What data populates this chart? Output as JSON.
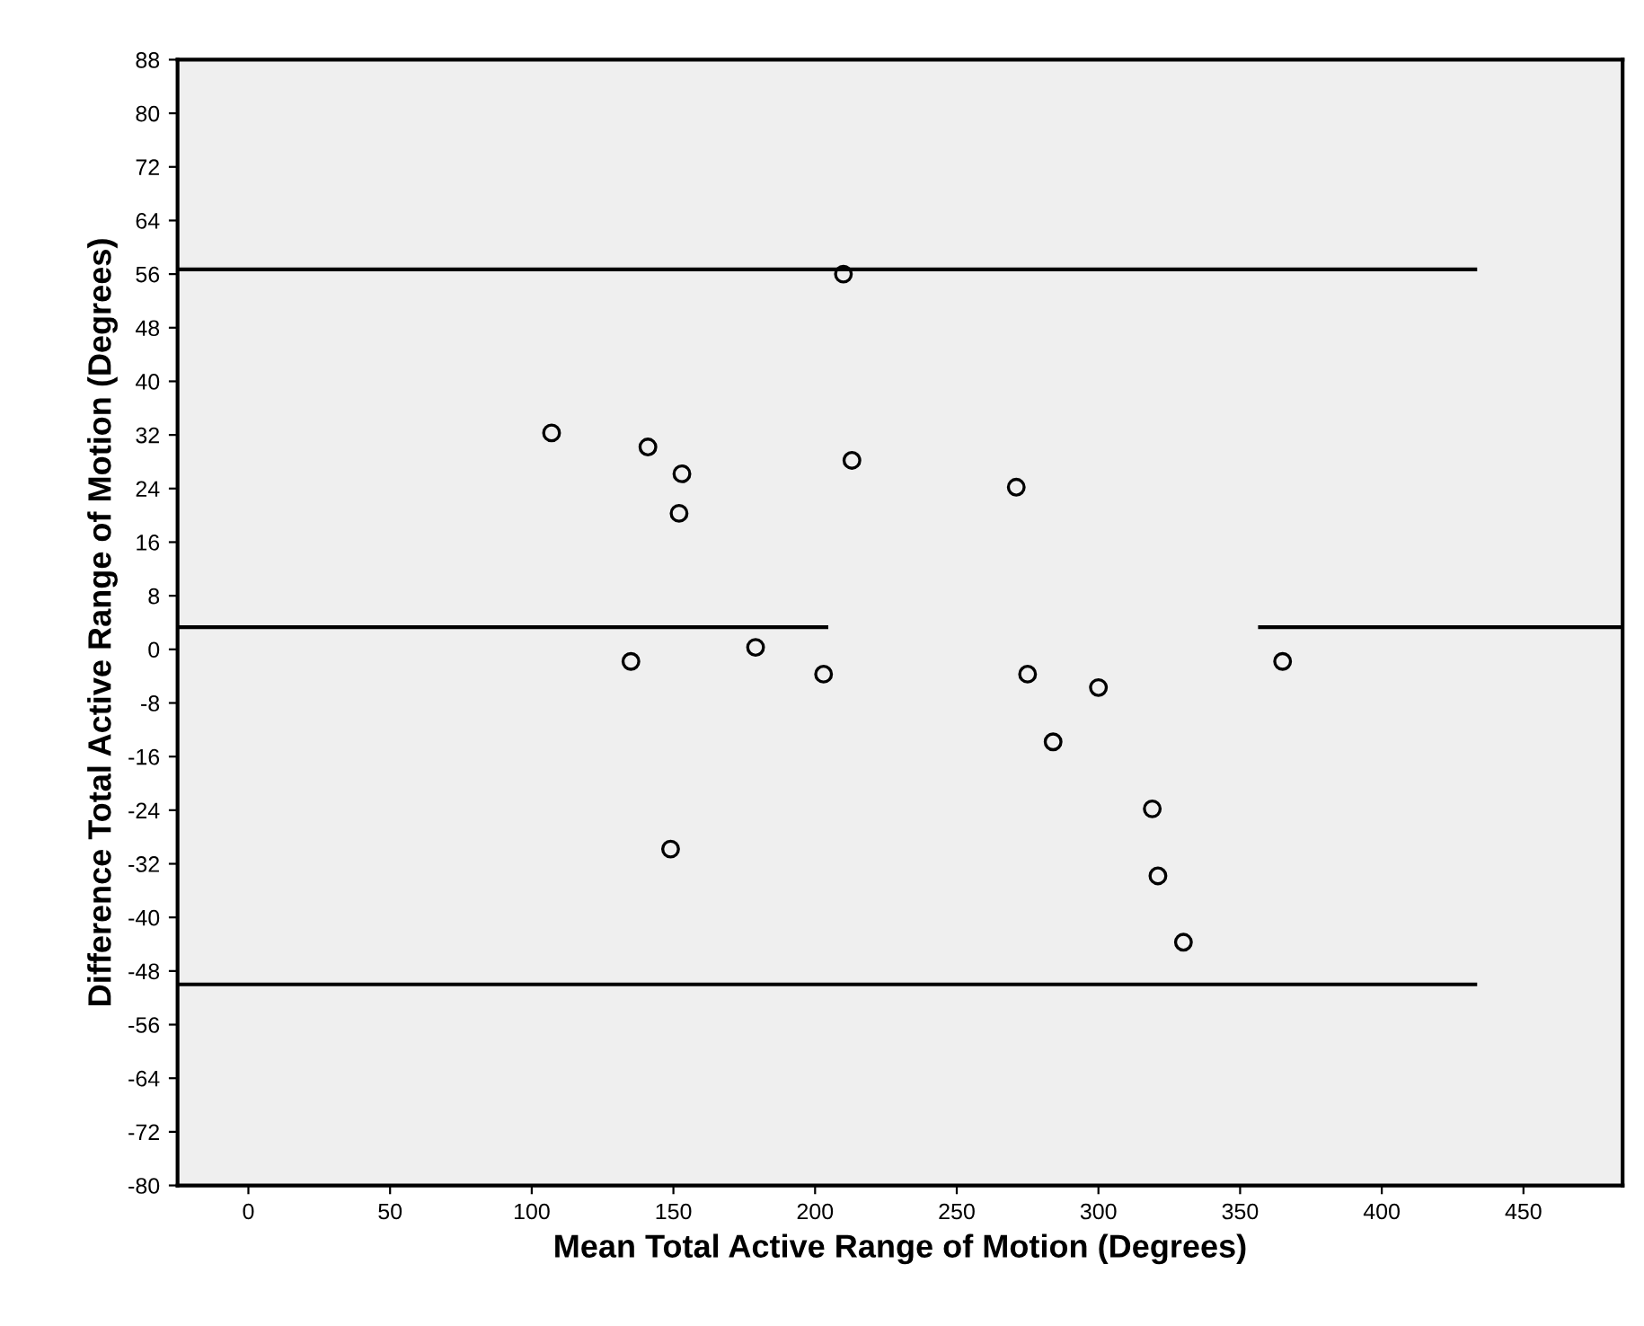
{
  "chart_data": {
    "type": "scatter",
    "xlabel": "Mean Total Active Range of Motion (Degrees)",
    "ylabel": "Difference Total Active Range of Motion (Degrees)",
    "xlim": [
      -25,
      485
    ],
    "xticks": [
      0,
      50,
      100,
      150,
      200,
      250,
      300,
      350,
      400,
      450
    ],
    "ylim": [
      -80,
      88
    ],
    "yticks": [
      -80,
      -72,
      -64,
      {
        "value": -56,
        "label": "-56"
      },
      -48,
      -40,
      -32,
      -24,
      -16,
      -8,
      0,
      8,
      16,
      24,
      32,
      40,
      48,
      56,
      64,
      72,
      80,
      88
    ],
    "grid": false,
    "series": [
      {
        "marker": "circle",
        "color": "#000000",
        "x": [
          107,
          141,
          153,
          152,
          135,
          179,
          149,
          210,
          213,
          271,
          203,
          275,
          300,
          284,
          319,
          321,
          330,
          365
        ],
        "values": [
          32.3,
          30.2,
          26.2,
          20.3,
          -1.8,
          0.3,
          -29.8,
          56,
          28.2,
          24.2,
          -3.7,
          -3.7,
          -5.7,
          -13.8,
          -23.8,
          -33.8,
          -43.7,
          -1.8
        ]
      },
      {
        "type": "line",
        "color": "#000000",
        "x": [
          -25,
          433
        ],
        "values": [
          56.7,
          56.7
        ]
      },
      {
        "type": "line",
        "color": "#000000",
        "x": [
          -25,
          204,
          280,
          357,
          485
        ],
        "values": [
          3.3,
          3.3,
          null,
          3.3,
          3.3
        ]
      },
      {
        "type": "line",
        "color": "#000000",
        "x": [
          -25,
          433
        ],
        "values": [
          -50,
          -50
        ]
      }
    ]
  }
}
